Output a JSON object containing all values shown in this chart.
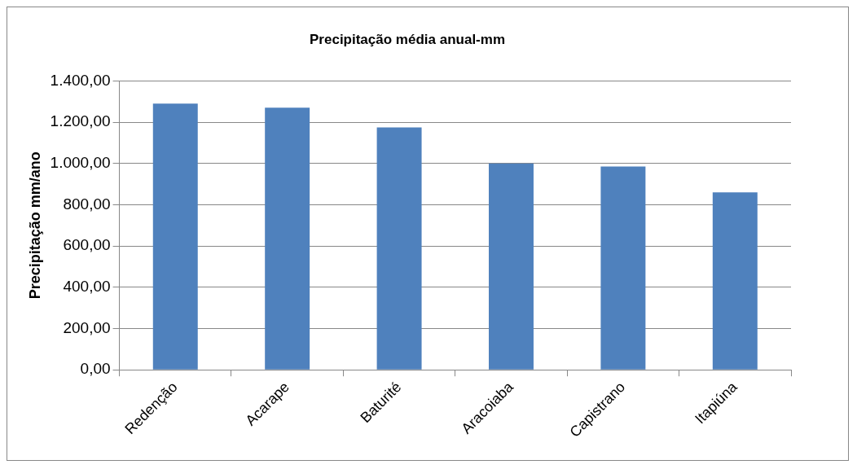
{
  "chart_data": {
    "type": "bar",
    "title": "Precipitação média anual-mm",
    "ylabel": "Precipitação mm/ano",
    "categories": [
      "Redenção",
      "Acarape",
      "Baturité",
      "Aracoiaba",
      "Capistrano",
      "Itapiúna"
    ],
    "values": [
      1290,
      1270,
      1175,
      1000,
      985,
      860
    ],
    "color": "#4f81bd",
    "ylim": [
      0,
      1400
    ],
    "yticks": [
      {
        "value": 0,
        "label": "0,00"
      },
      {
        "value": 200,
        "label": "200,00"
      },
      {
        "value": 400,
        "label": "400,00"
      },
      {
        "value": 600,
        "label": "600,00"
      },
      {
        "value": 800,
        "label": "800,00"
      },
      {
        "value": 1000,
        "label": "1.000,00"
      },
      {
        "value": 1200,
        "label": "1.200,00"
      },
      {
        "value": 1400,
        "label": "1.400,00"
      }
    ],
    "grid": true
  }
}
